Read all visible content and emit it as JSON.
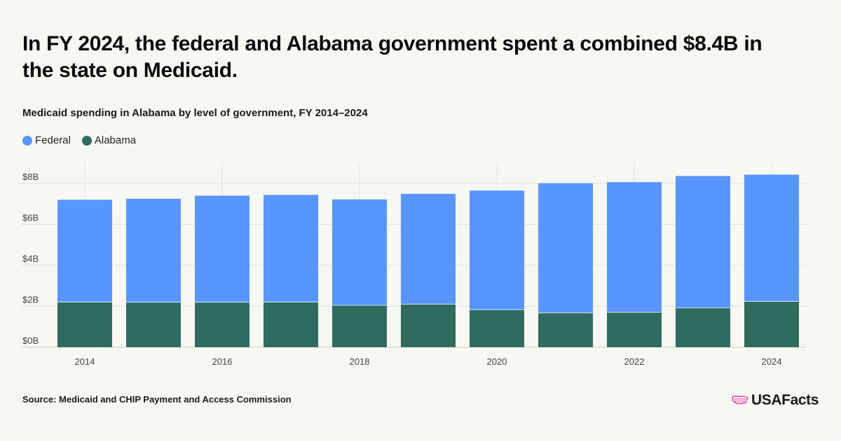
{
  "title": "In FY 2024, the federal and Alabama government spent a combined $8.4B in the state on Medicaid.",
  "subtitle": "Medicaid spending in Alabama by level of government, FY 2014–2024",
  "legend": [
    {
      "label": "Federal",
      "color": "#5896fd"
    },
    {
      "label": "Alabama",
      "color": "#2f6b5e"
    }
  ],
  "source": "Source: Medicaid and CHIP Payment and Access Commission",
  "brand": {
    "name": "USAFacts",
    "icon": "usa-map-icon",
    "icon_color": "#e43d9a"
  },
  "chart_data": {
    "type": "bar",
    "stacked": true,
    "x": [
      2014,
      2015,
      2016,
      2017,
      2018,
      2019,
      2020,
      2021,
      2022,
      2023,
      2024
    ],
    "x_tick_labels": [
      "2014",
      "2016",
      "2018",
      "2020",
      "2022",
      "2024"
    ],
    "y_tick_labels": [
      "$0B",
      "$2B",
      "$4B",
      "$6B",
      "$8B"
    ],
    "y_ticks": [
      0,
      2,
      4,
      6,
      8
    ],
    "ylim": [
      0,
      9
    ],
    "units": "billions of dollars",
    "grid": true,
    "legend_position": "top-left",
    "series": [
      {
        "name": "Alabama",
        "color": "#2f6b5e",
        "values": [
          2.22,
          2.21,
          2.21,
          2.22,
          2.06,
          2.11,
          1.84,
          1.69,
          1.72,
          1.93,
          2.25
        ]
      },
      {
        "name": "Federal",
        "color": "#5896fd",
        "values": [
          4.98,
          5.04,
          5.19,
          5.22,
          5.16,
          5.38,
          5.81,
          6.32,
          6.34,
          6.43,
          6.18
        ]
      }
    ]
  }
}
